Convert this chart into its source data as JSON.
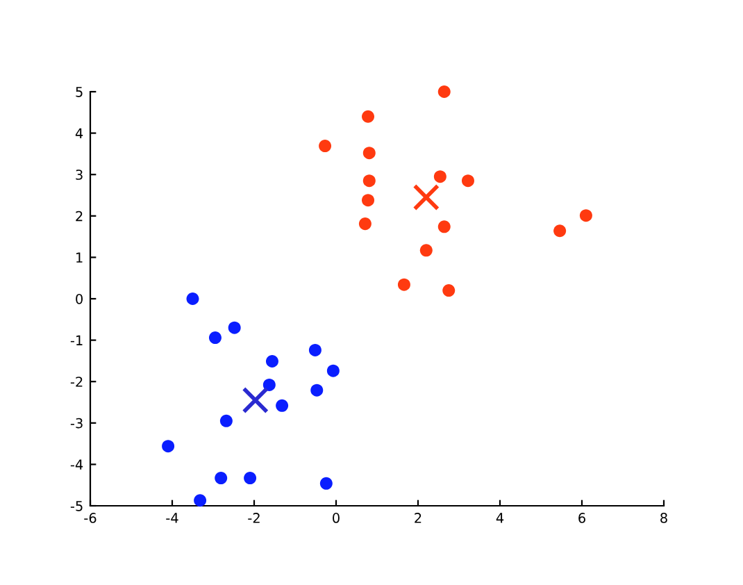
{
  "chart_data": {
    "type": "scatter",
    "xlim": [
      -6,
      8
    ],
    "ylim": [
      -5,
      5
    ],
    "xticks": [
      -6,
      -4,
      -2,
      0,
      2,
      4,
      6,
      8
    ],
    "yticks": [
      -5,
      -4,
      -3,
      -2,
      -1,
      0,
      1,
      2,
      3,
      4,
      5
    ],
    "grid": false,
    "legend": false,
    "marker": "circle",
    "series": [
      {
        "color": "#0a1eff",
        "x": [
          -3.5,
          -2.95,
          -2.48,
          -1.56,
          -0.51,
          -0.07,
          -1.63,
          -0.47,
          -1.32,
          -2.68,
          -4.1,
          -2.81,
          -2.1,
          -0.24,
          -3.32
        ],
        "values": [
          0,
          -0.94,
          -0.7,
          -1.51,
          -1.24,
          -1.74,
          -2.08,
          -2.21,
          -2.58,
          -2.95,
          -3.56,
          -4.33,
          -4.33,
          -4.46,
          -4.87
        ]
      },
      {
        "color": "#ff3a10",
        "x": [
          -0.27,
          0.78,
          2.64,
          0.81,
          0.81,
          0.78,
          0.71,
          2.54,
          3.22,
          2.64,
          2.2,
          1.66,
          2.75,
          5.46,
          6.1
        ],
        "values": [
          3.69,
          4.4,
          5.0,
          3.52,
          2.85,
          2.38,
          1.81,
          2.95,
          2.85,
          1.74,
          1.17,
          0.34,
          0.2,
          1.64,
          2.01
        ]
      },
      {
        "color": "#2a2ad0",
        "marker": "cross",
        "x": [
          -1.97
        ],
        "values": [
          -2.45
        ]
      },
      {
        "color": "#ff3a10",
        "marker": "cross",
        "x": [
          2.2
        ],
        "values": [
          2.45
        ]
      }
    ]
  }
}
